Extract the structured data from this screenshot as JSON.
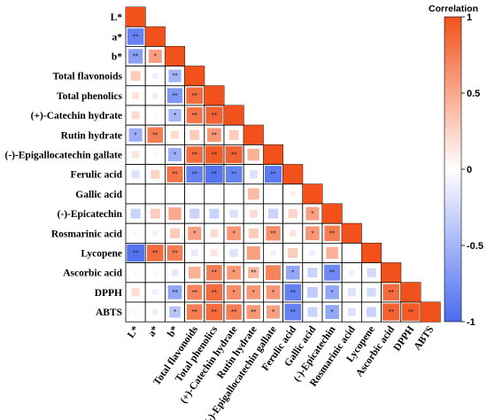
{
  "chart_data": {
    "type": "heatmap",
    "variables": [
      "L*",
      "a*",
      "b*",
      "Total flavonoids",
      "Total phenolics",
      "(+)-Catechin hydrate",
      "Rutin hydrate",
      "(-)-Epigallocatechin gallate",
      "Ferulic acid",
      "Gallic acid",
      "(-)-Epicatechin",
      "Rosmarinic acid",
      "Lycopene",
      "Ascorbic acid",
      "DPPH",
      "ABTS"
    ],
    "matrix": [
      [
        1
      ],
      [
        -0.85,
        1
      ],
      [
        -0.65,
        0.55,
        1
      ],
      [
        0.3,
        -0.1,
        -0.5,
        1
      ],
      [
        0.15,
        -0.1,
        -0.7,
        0.85,
        1
      ],
      [
        0.2,
        -0.05,
        -0.5,
        0.8,
        0.9,
        1
      ],
      [
        -0.55,
        0.75,
        0.2,
        0.3,
        0.6,
        0.3,
        1
      ],
      [
        0.15,
        0.05,
        -0.55,
        0.85,
        0.95,
        0.9,
        0.45,
        1
      ],
      [
        -0.2,
        0.25,
        0.8,
        -0.85,
        -0.95,
        -0.85,
        -0.2,
        -0.9,
        1
      ],
      [
        0,
        0,
        0,
        0,
        0,
        0,
        0.4,
        0,
        0.1,
        1
      ],
      [
        -0.3,
        0.3,
        0.5,
        -0.3,
        -0.3,
        -0.2,
        0.2,
        -0.3,
        0.25,
        0.55,
        1
      ],
      [
        0.05,
        0.1,
        0.3,
        0.55,
        0.2,
        0.6,
        0.3,
        0.65,
        0.15,
        0.6,
        0.75,
        1
      ],
      [
        -0.95,
        0.85,
        0.75,
        -0.15,
        0.15,
        -0.2,
        0.55,
        -0.1,
        0.3,
        -0.1,
        0.45,
        0.05,
        1
      ],
      [
        0.05,
        -0.05,
        -0.15,
        0.45,
        0.75,
        0.6,
        0.4,
        0.7,
        -0.6,
        -0.3,
        -0.8,
        -0.1,
        -0.25,
        1
      ],
      [
        0.2,
        -0.1,
        -0.6,
        0.7,
        0.85,
        0.65,
        0.6,
        0.6,
        -0.85,
        -0.35,
        -0.6,
        -0.2,
        -0.25,
        0.85,
        1
      ],
      [
        0.05,
        -0.1,
        -0.4,
        0.75,
        0.85,
        0.75,
        0.6,
        0.55,
        -0.85,
        -0.3,
        -0.6,
        -0.2,
        -0.3,
        0.9,
        0.95,
        1
      ]
    ],
    "stars": [
      [
        ""
      ],
      [
        "**",
        ""
      ],
      [
        "**",
        "*",
        ""
      ],
      [
        "",
        "",
        "**",
        ""
      ],
      [
        "",
        "",
        "**",
        "**",
        ""
      ],
      [
        "",
        "",
        "*",
        "**",
        "**",
        ""
      ],
      [
        "*",
        "**",
        "",
        "",
        "**",
        "",
        ""
      ],
      [
        "",
        "",
        "*",
        "**",
        "**",
        "**",
        "",
        ""
      ],
      [
        "",
        "",
        "**",
        "**",
        "**",
        "**",
        "",
        "**",
        ""
      ],
      [
        "",
        "",
        "",
        "",
        "",
        "",
        "",
        "",
        "",
        ""
      ],
      [
        "",
        "",
        "",
        "",
        "",
        "",
        "",
        "",
        "",
        "*",
        ""
      ],
      [
        "",
        "",
        "",
        "*",
        "",
        "*",
        "",
        "**",
        "",
        "*",
        "**",
        ""
      ],
      [
        "**",
        "**",
        "**",
        "",
        "",
        "",
        "",
        "",
        "",
        "",
        "",
        "",
        ""
      ],
      [
        "",
        "",
        "",
        "",
        "**",
        "*",
        "**",
        "",
        "*",
        "",
        "**",
        "",
        "",
        ""
      ],
      [
        "",
        "",
        "**",
        "**",
        "**",
        "*",
        "*",
        "*",
        "**",
        "",
        "*",
        "",
        "",
        "**",
        ""
      ],
      [
        "",
        "",
        "*",
        "**",
        "**",
        "**",
        "**",
        "*",
        "**",
        "",
        "*",
        "",
        "",
        "**",
        "**",
        ""
      ]
    ],
    "colorbar": {
      "title": "Correlation",
      "range": [
        -1,
        1
      ],
      "ticks": [
        "1",
        "0.5",
        "0",
        "-0.5",
        "-1"
      ]
    },
    "colors": {
      "positive": "#f2511b",
      "neutral": "#ffffff",
      "negative": "#4a6cf0",
      "border": "#000000"
    }
  }
}
